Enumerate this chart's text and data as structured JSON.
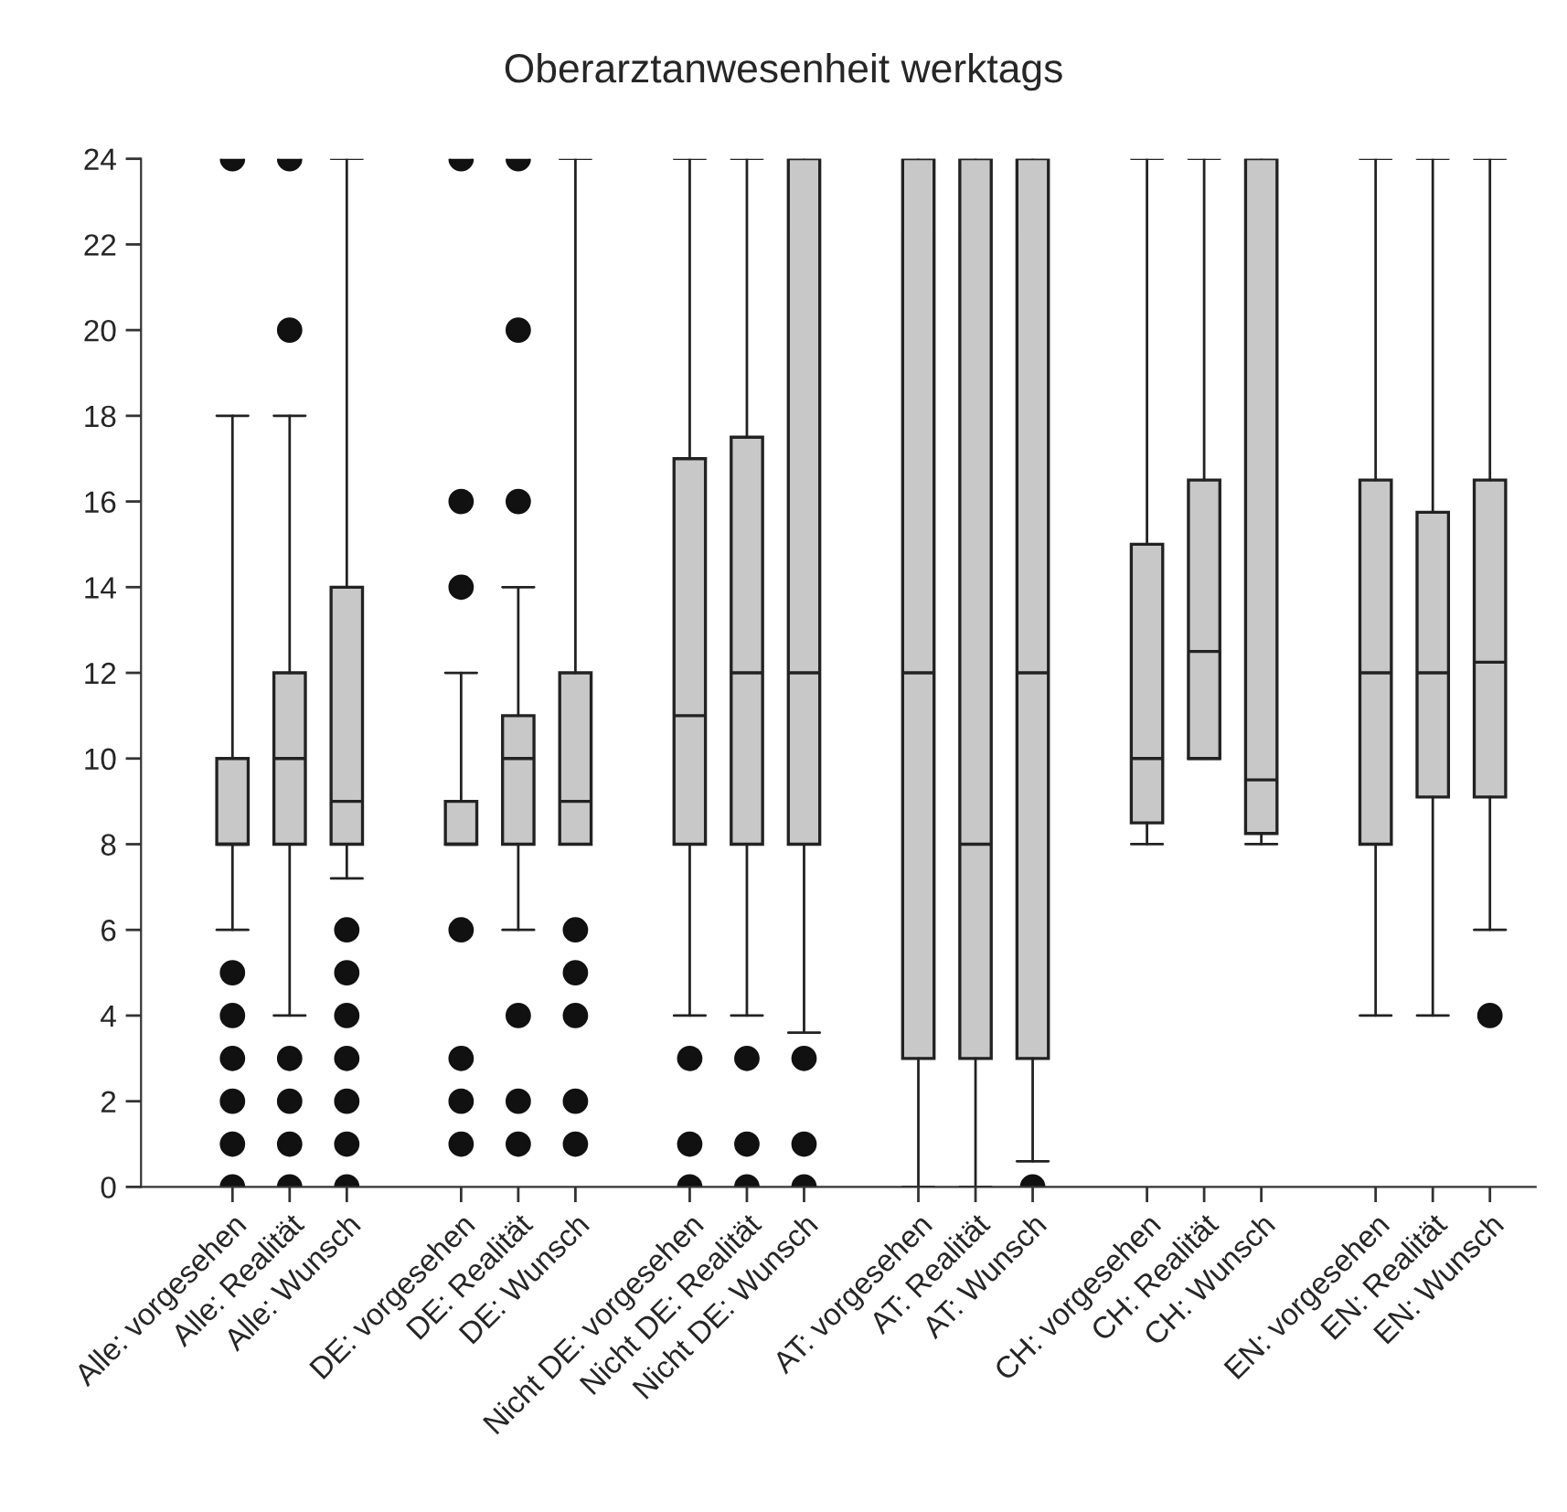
{
  "chart_data": {
    "type": "box",
    "title": "Oberarztanwesenheit werktags",
    "categories": [
      "Alle: vorgesehen",
      "Alle: Realität",
      "Alle: Wunsch",
      null,
      "DE: vorgesehen",
      "DE: Realität",
      "DE: Wunsch",
      null,
      "Nicht DE: vorgesehen",
      "Nicht DE: Realität",
      "Nicht DE: Wunsch",
      null,
      "AT: vorgesehen",
      "AT: Realität",
      "AT: Wunsch",
      null,
      "CH: vorgesehen",
      "CH: Realität",
      "CH: Wunsch",
      null,
      "EN: vorgesehen",
      "EN: Realität",
      "EN: Wunsch"
    ],
    "series": [
      {
        "color": "#c8c8c8",
        "boxes": [
          {
            "low": 6,
            "q1": 8,
            "median": 8,
            "q3": 10,
            "high": 18,
            "outliers": [
              0,
              1,
              2,
              3,
              4,
              5,
              24
            ]
          },
          {
            "low": 4,
            "q1": 8,
            "median": 10,
            "q3": 12,
            "high": 18,
            "outliers": [
              0,
              1,
              2,
              3,
              20,
              24
            ]
          },
          {
            "low": 7.2,
            "q1": 8,
            "median": 9,
            "q3": 14,
            "high": 24,
            "outliers": [
              0,
              1,
              2,
              3,
              4,
              5,
              6
            ]
          },
          null,
          {
            "low": 8,
            "q1": 8,
            "median": 8,
            "q3": 9,
            "high": 12,
            "outliers": [
              1,
              2,
              3,
              6,
              14,
              16,
              24
            ]
          },
          {
            "low": 6,
            "q1": 8,
            "median": 10,
            "q3": 11,
            "high": 14,
            "outliers": [
              1,
              2,
              4,
              16,
              20,
              24
            ]
          },
          {
            "low": 8,
            "q1": 8,
            "median": 9,
            "q3": 12,
            "high": 24,
            "outliers": [
              1,
              2,
              4,
              5,
              6
            ]
          },
          null,
          {
            "low": 4,
            "q1": 8,
            "median": 11,
            "q3": 17,
            "high": 24,
            "outliers": [
              0,
              1,
              3
            ]
          },
          {
            "low": 4,
            "q1": 8,
            "median": 12,
            "q3": 17.5,
            "high": 24,
            "outliers": [
              0,
              1,
              3
            ]
          },
          {
            "low": 3.6,
            "q1": 8,
            "median": 12,
            "q3": 24,
            "high": 24,
            "outliers": [
              0,
              1,
              3
            ]
          },
          null,
          {
            "low": 0,
            "q1": 3,
            "median": 12,
            "q3": 24,
            "high": 24
          },
          {
            "low": 0,
            "q1": 3,
            "median": 8,
            "q3": 24,
            "high": 24
          },
          {
            "low": 0.6,
            "q1": 3,
            "median": 12,
            "q3": 24,
            "high": 24,
            "outliers": [
              0
            ]
          },
          null,
          {
            "low": 8,
            "q1": 8.5,
            "median": 10,
            "q3": 15,
            "high": 24
          },
          {
            "low": 10,
            "q1": 10,
            "median": 12.5,
            "q3": 16.5,
            "high": 24
          },
          {
            "low": 8,
            "q1": 8.25,
            "median": 9.5,
            "q3": 24,
            "high": 24
          },
          null,
          {
            "low": 4,
            "q1": 8,
            "median": 12,
            "q3": 16.5,
            "high": 24
          },
          {
            "low": 4,
            "q1": 9.1,
            "median": 12,
            "q3": 15.75,
            "high": 24
          },
          {
            "low": 6,
            "q1": 9.1,
            "median": 12.25,
            "q3": 16.5,
            "high": 24,
            "outliers": [
              4
            ]
          }
        ]
      }
    ],
    "ylim": [
      0,
      24
    ],
    "yticks": [
      0,
      2,
      4,
      6,
      8,
      10,
      12,
      14,
      16,
      18,
      20,
      22,
      24
    ]
  }
}
